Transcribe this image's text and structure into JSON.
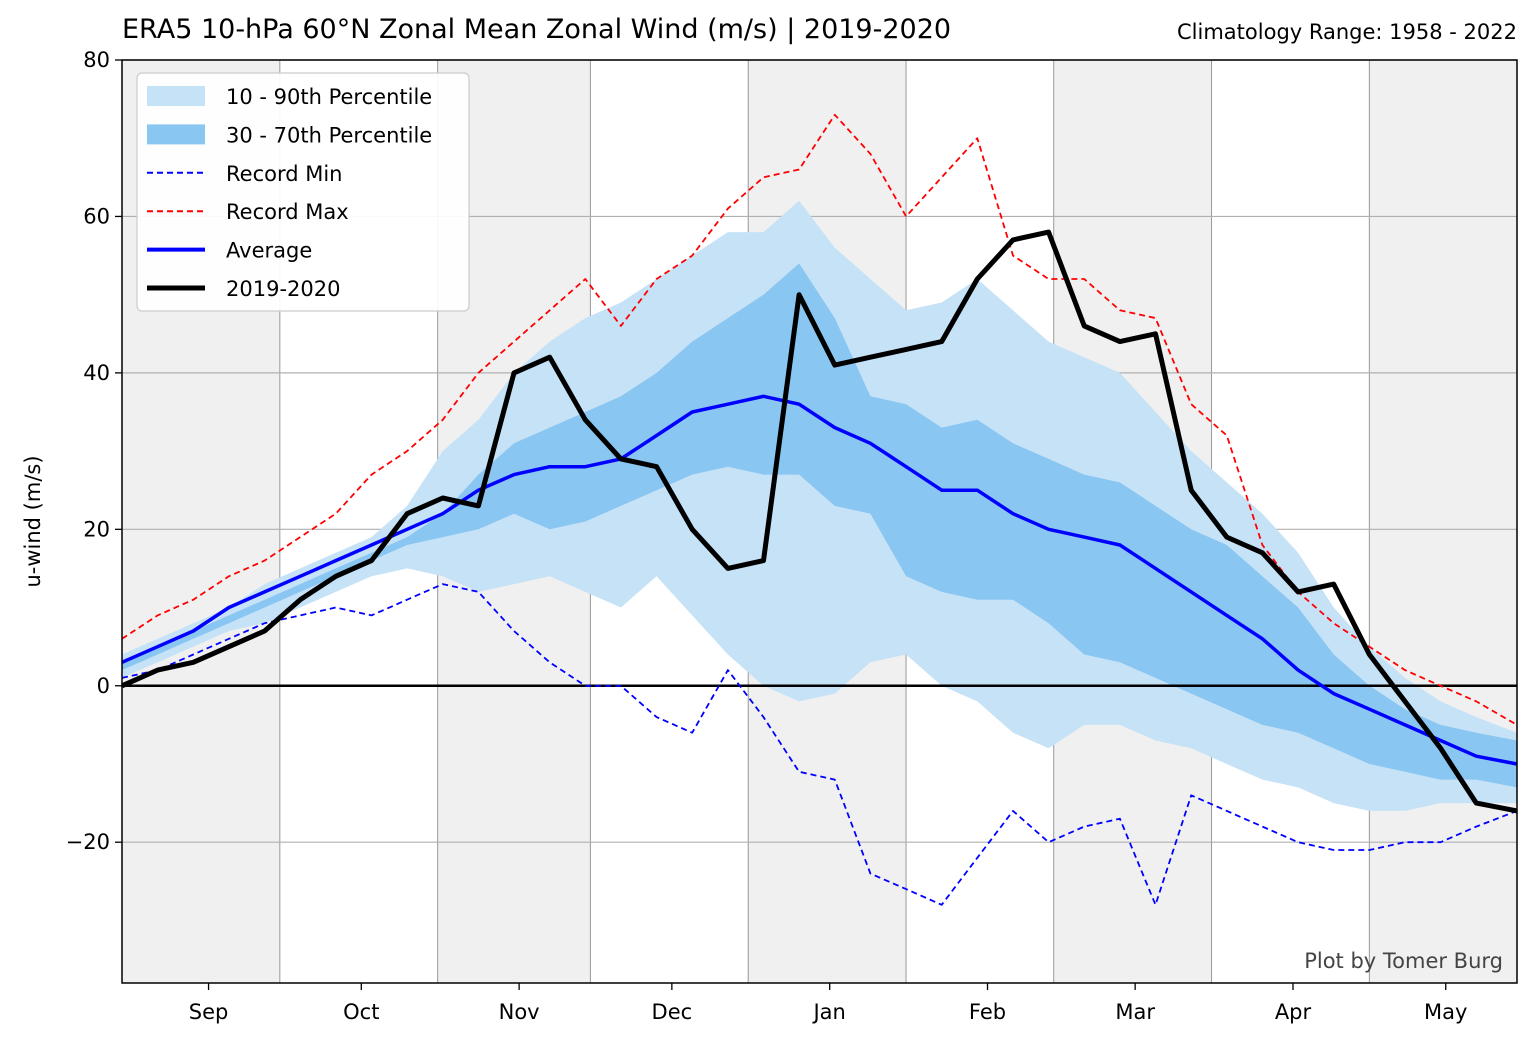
{
  "title": "ERA5 10-hPa 60°N Zonal Mean Zonal Wind (m/s) | 2019-2020",
  "subtitle_right": "Climatology Range: 1958 - 2022",
  "credit": "Plot by Tomer Burg",
  "colors": {
    "band_10_90": "#c6e2f7",
    "band_30_70": "#8ac6f2",
    "record_min": "#0000ff",
    "record_max": "#ff0000",
    "average": "#0000ff",
    "current": "#000000",
    "shade": "#f0f0f0",
    "grid": "#b0b0b0"
  },
  "chart_data": {
    "type": "line",
    "title": "ERA5 10-hPa 60°N Zonal Mean Zonal Wind (m/s) | 2019-2020",
    "xlabel": "",
    "ylabel": "u-wind (m/s)",
    "ylim": [
      -38,
      80
    ],
    "yticks": [
      -20,
      0,
      20,
      40,
      60,
      80
    ],
    "ytick_labels": [
      "−20",
      "0",
      "20",
      "40",
      "60",
      "80"
    ],
    "xlim": [
      "2019-08-15",
      "2020-05-15"
    ],
    "month_ticks": [
      {
        "label": "Sep",
        "date": "2019-09-01"
      },
      {
        "label": "Oct",
        "date": "2019-10-01"
      },
      {
        "label": "Nov",
        "date": "2019-11-01"
      },
      {
        "label": "Dec",
        "date": "2019-12-01"
      },
      {
        "label": "Jan",
        "date": "2020-01-01"
      },
      {
        "label": "Feb",
        "date": "2020-02-01"
      },
      {
        "label": "Mar",
        "date": "2020-03-01"
      },
      {
        "label": "Apr",
        "date": "2020-04-01"
      },
      {
        "label": "May",
        "date": "2020-05-01"
      }
    ],
    "shaded_periods": [
      [
        "2019-08-15",
        "2019-09-15"
      ],
      [
        "2019-10-16",
        "2019-11-15"
      ],
      [
        "2019-12-16",
        "2020-01-16"
      ],
      [
        "2020-02-14",
        "2020-03-16"
      ],
      [
        "2020-04-16",
        "2020-05-15"
      ]
    ],
    "grid": true,
    "legend_position": "top-left",
    "legend": [
      {
        "label": "10 - 90th Percentile",
        "style": "patch",
        "color": "#c6e2f7"
      },
      {
        "label": "30 - 70th Percentile",
        "style": "patch",
        "color": "#8ac6f2"
      },
      {
        "label": "Record Min",
        "style": "dashed",
        "color": "#0000ff"
      },
      {
        "label": "Record Max",
        "style": "dashed",
        "color": "#ff0000"
      },
      {
        "label": "Average",
        "style": "solid",
        "color": "#0000ff"
      },
      {
        "label": "2019-2020",
        "style": "solid-thick",
        "color": "#000000"
      }
    ],
    "x": [
      "2019-08-15",
      "2019-08-22",
      "2019-08-29",
      "2019-09-05",
      "2019-09-12",
      "2019-09-19",
      "2019-09-26",
      "2019-10-03",
      "2019-10-10",
      "2019-10-17",
      "2019-10-24",
      "2019-10-31",
      "2019-11-07",
      "2019-11-14",
      "2019-11-21",
      "2019-11-28",
      "2019-12-05",
      "2019-12-12",
      "2019-12-19",
      "2019-12-26",
      "2020-01-02",
      "2020-01-09",
      "2020-01-16",
      "2020-01-23",
      "2020-01-30",
      "2020-02-06",
      "2020-02-13",
      "2020-02-20",
      "2020-02-27",
      "2020-03-05",
      "2020-03-12",
      "2020-03-19",
      "2020-03-26",
      "2020-04-02",
      "2020-04-09",
      "2020-04-16",
      "2020-04-23",
      "2020-04-30",
      "2020-05-07",
      "2020-05-15"
    ],
    "series": [
      {
        "name": "30 - 70th Percentile",
        "kind": "band",
        "lower": [
          2,
          4,
          6,
          8,
          10,
          12,
          14,
          16,
          18,
          19,
          20,
          22,
          20,
          21,
          23,
          25,
          27,
          28,
          27,
          27,
          23,
          22,
          14,
          12,
          11,
          11,
          8,
          4,
          3,
          1,
          -1,
          -3,
          -5,
          -6,
          -8,
          -10,
          -11,
          -12,
          -12,
          -13
        ],
        "upper": [
          3,
          5,
          7,
          9,
          11,
          13,
          15,
          17,
          19,
          22,
          27,
          31,
          33,
          35,
          37,
          40,
          44,
          47,
          50,
          54,
          47,
          37,
          36,
          33,
          34,
          31,
          29,
          27,
          26,
          23,
          20,
          18,
          14,
          10,
          4,
          0,
          -3,
          -5,
          -6,
          -7
        ]
      },
      {
        "name": "10 - 90th Percentile",
        "kind": "band",
        "lower": [
          1,
          3,
          5,
          7,
          8,
          10,
          12,
          14,
          15,
          14,
          12,
          13,
          14,
          12,
          10,
          14,
          9,
          4,
          0,
          -2,
          -1,
          3,
          4,
          0,
          -2,
          -6,
          -8,
          -5,
          -5,
          -7,
          -8,
          -10,
          -12,
          -13,
          -15,
          -16,
          -16,
          -15,
          -15,
          -15
        ],
        "upper": [
          4,
          6,
          8,
          10,
          13,
          15,
          17,
          19,
          23,
          30,
          34,
          40,
          44,
          47,
          49,
          52,
          55,
          58,
          58,
          62,
          56,
          52,
          48,
          49,
          52,
          48,
          44,
          42,
          40,
          35,
          30,
          26,
          22,
          17,
          10,
          5,
          1,
          -2,
          -4,
          -6
        ]
      },
      {
        "name": "Record Min",
        "kind": "dashed",
        "values": [
          1,
          2,
          4,
          6,
          8,
          9,
          10,
          9,
          11,
          13,
          12,
          7,
          3,
          0,
          0,
          -4,
          -6,
          2,
          -4,
          -11,
          -12,
          -24,
          -26,
          -28,
          -22,
          -16,
          -20,
          -18,
          -17,
          -28,
          -14,
          -16,
          -18,
          -20,
          -21,
          -21,
          -20,
          -20,
          -18,
          -16
        ]
      },
      {
        "name": "Record Max",
        "kind": "dashed",
        "values": [
          6,
          9,
          11,
          14,
          16,
          19,
          22,
          27,
          30,
          34,
          40,
          44,
          48,
          52,
          46,
          52,
          55,
          61,
          65,
          66,
          73,
          68,
          60,
          65,
          70,
          55,
          52,
          52,
          48,
          47,
          36,
          32,
          18,
          12,
          8,
          5,
          2,
          0,
          -2,
          -5
        ]
      },
      {
        "name": "Average",
        "kind": "solid",
        "values": [
          3,
          5,
          7,
          10,
          12,
          14,
          16,
          18,
          20,
          22,
          25,
          27,
          28,
          28,
          29,
          32,
          35,
          36,
          37,
          36,
          33,
          31,
          28,
          25,
          25,
          22,
          20,
          19,
          18,
          15,
          12,
          9,
          6,
          2,
          -1,
          -3,
          -5,
          -7,
          -9,
          -10
        ]
      },
      {
        "name": "2019-2020",
        "kind": "thick",
        "values": [
          0,
          2,
          3,
          5,
          7,
          11,
          14,
          16,
          22,
          24,
          23,
          40,
          42,
          34,
          29,
          28,
          20,
          15,
          16,
          50,
          41,
          42,
          43,
          44,
          52,
          57,
          58,
          46,
          44,
          45,
          25,
          19,
          17,
          12,
          13,
          4,
          -2,
          -8,
          -15,
          -16
        ]
      }
    ]
  }
}
